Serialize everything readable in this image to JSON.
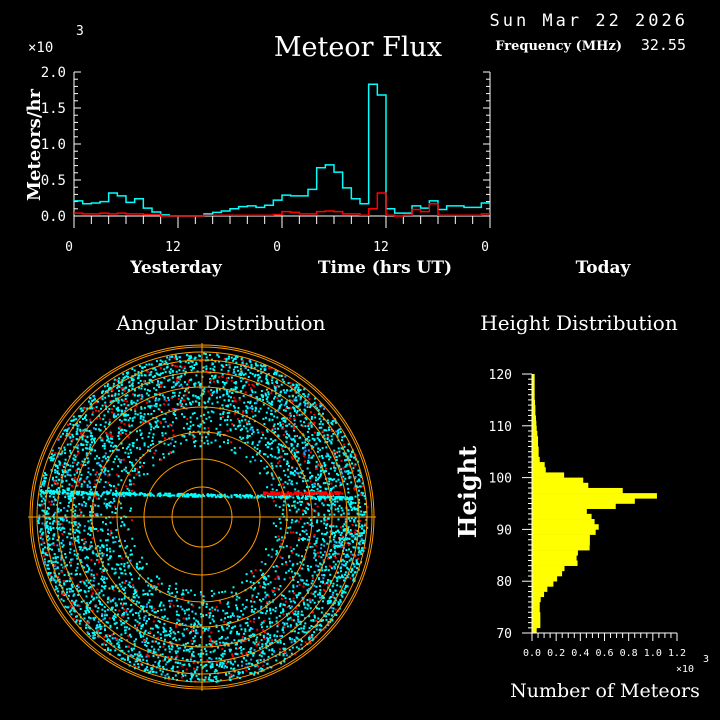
{
  "header": {
    "date": "Sun Mar 22 2026",
    "title": "Meteor Flux",
    "frequency_label": "Frequency (MHz)",
    "frequency_value": "32.55",
    "multiplier": "×10",
    "multiplier_exp": "3"
  },
  "chart_data": [
    {
      "type": "line",
      "step": true,
      "title": "Meteor Flux",
      "ylabel": "Meteors/hr",
      "xlabel": "Time (hrs UT)",
      "x_group_labels": [
        "Yesterday",
        "Today"
      ],
      "x_tick_labels": [
        "0",
        "12",
        "0",
        "12",
        "0"
      ],
      "y_tick_labels": [
        "0.0",
        "0.5",
        "1.0",
        "1.5",
        "2.0"
      ],
      "y_scale": "×10^3",
      "ylim": [
        0,
        2.0
      ],
      "x_range_hours": [
        0,
        48
      ],
      "series": [
        {
          "color": "#00ffff",
          "values": [
            0.21,
            0.17,
            0.18,
            0.2,
            0.32,
            0.28,
            0.19,
            0.24,
            0.11,
            0.055,
            0.015,
            0,
            0,
            0,
            0,
            0.03,
            0.05,
            0.07,
            0.1,
            0.13,
            0.14,
            0.12,
            0.15,
            0.22,
            0.29,
            0.28,
            0.28,
            0.37,
            0.67,
            0.71,
            0.61,
            0.39,
            0.24,
            0.17,
            1.83,
            1.68,
            0.1,
            0.04,
            0.04,
            0.14,
            0.11,
            0.21,
            0.09,
            0.14,
            0.14,
            0.12,
            0.12,
            0.18
          ]
        },
        {
          "color": "#ff0000",
          "values": [
            0.04,
            0.03,
            0.03,
            0.04,
            0.03,
            0.04,
            0.03,
            0.03,
            0.02,
            0.02,
            0,
            0,
            0,
            0,
            0,
            0.01,
            0.01,
            0.01,
            0.01,
            0.01,
            0.01,
            0.01,
            0.01,
            0.02,
            0.06,
            0.05,
            0.03,
            0.03,
            0.06,
            0.07,
            0.06,
            0.03,
            0.03,
            0.01,
            0.1,
            0.32,
            0.01,
            0,
            0.01,
            0.09,
            0.06,
            0.17,
            0.01,
            0.01,
            0.01,
            0.01,
            0.01,
            0.03
          ]
        }
      ]
    },
    {
      "type": "scatter",
      "title": "Angular Distribution",
      "projection": "polar",
      "series_colors": [
        "#00ffff",
        "#ff0000",
        "#3399ff",
        "#99cc66"
      ],
      "grid_color": "#ff9900"
    },
    {
      "type": "bar",
      "orientation": "horizontal",
      "title": "Height Distribution",
      "ylabel": "Height",
      "xlabel": "Number of Meteors",
      "x_scale": "×10^3",
      "xlim": [
        0,
        1.2
      ],
      "ylim": [
        70,
        120
      ],
      "x_tick_labels": [
        "0.0",
        "0.2",
        "0.4",
        "0.6",
        "0.8",
        "1.0",
        "1.2"
      ],
      "y_tick_labels": [
        "70",
        "80",
        "90",
        "100",
        "110",
        "120"
      ],
      "color": "#ffff00",
      "bin_start_heights": [
        70,
        71,
        72,
        73,
        74,
        75,
        76,
        77,
        78,
        79,
        80,
        81,
        82,
        83,
        84,
        85,
        86,
        87,
        88,
        89,
        90,
        91,
        92,
        93,
        94,
        95,
        96,
        97,
        98,
        99,
        100,
        101,
        102,
        103,
        104,
        105,
        106,
        107,
        108,
        109,
        110,
        111,
        112,
        113,
        114,
        115,
        116,
        117,
        118,
        119
      ],
      "values": [
        39,
        69,
        69,
        69,
        64,
        64,
        72,
        100,
        127,
        177,
        208,
        249,
        269,
        377,
        369,
        380,
        477,
        479,
        479,
        527,
        552,
        518,
        493,
        454,
        693,
        851,
        1034,
        751,
        466,
        424,
        266,
        114,
        105,
        64,
        55,
        55,
        50,
        50,
        44,
        39,
        36,
        33,
        28,
        28,
        25,
        22,
        22,
        22,
        22,
        22
      ]
    }
  ]
}
